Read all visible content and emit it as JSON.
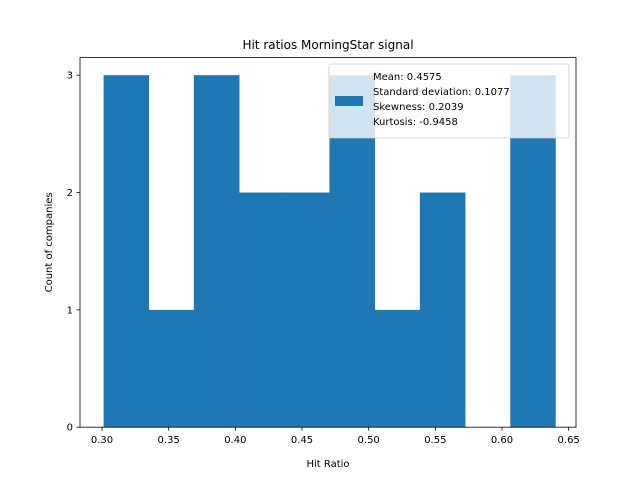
{
  "chart_data": {
    "type": "bar",
    "title": "Hit ratios MorningStar signal",
    "xlabel": "Hit Ratio",
    "ylabel": "Count of companies",
    "xlim": [
      0.2835,
      0.6555
    ],
    "ylim": [
      0,
      3.15
    ],
    "xticks": [
      0.3,
      0.35,
      0.4,
      0.45,
      0.5,
      0.55,
      0.6,
      0.65
    ],
    "xtick_labels": [
      "0.30",
      "0.35",
      "0.40",
      "0.45",
      "0.50",
      "0.55",
      "0.60",
      "0.65"
    ],
    "yticks": [
      0,
      1,
      2,
      3
    ],
    "ytick_labels": [
      "0",
      "1",
      "2",
      "3"
    ],
    "bins": [
      {
        "x0": 0.3012,
        "x1": 0.335,
        "count": 3
      },
      {
        "x0": 0.335,
        "x1": 0.3689,
        "count": 1
      },
      {
        "x0": 0.3689,
        "x1": 0.4028,
        "count": 3
      },
      {
        "x0": 0.4028,
        "x1": 0.4367,
        "count": 2
      },
      {
        "x0": 0.4367,
        "x1": 0.4706,
        "count": 2
      },
      {
        "x0": 0.4706,
        "x1": 0.5045,
        "count": 3
      },
      {
        "x0": 0.5045,
        "x1": 0.5384,
        "count": 1
      },
      {
        "x0": 0.5384,
        "x1": 0.5723,
        "count": 2
      },
      {
        "x0": 0.5723,
        "x1": 0.6062,
        "count": 0
      },
      {
        "x0": 0.6062,
        "x1": 0.64,
        "count": 3
      }
    ],
    "bar_color": "#1f77b4",
    "grid": false,
    "legend": {
      "placement": "top-right",
      "lines": [
        "Mean: 0.4575",
        "Standard deviation: 0.1077",
        "Skewness: 0.2039",
        "Kurtosis: -0.9458"
      ]
    }
  }
}
